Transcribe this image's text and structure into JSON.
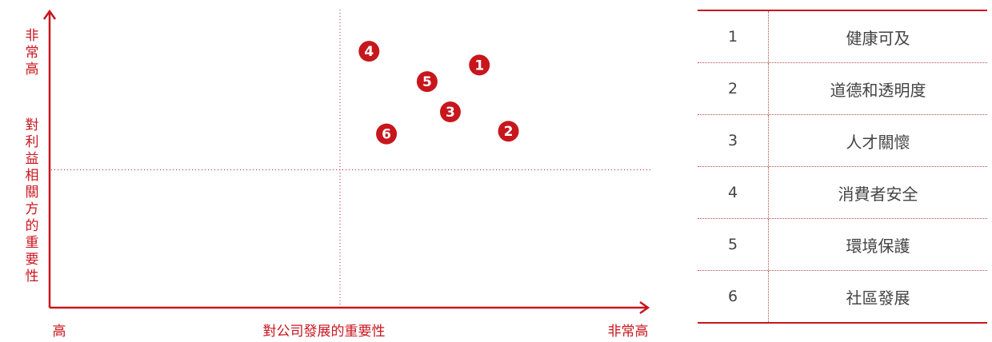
{
  "chart_data": {
    "type": "scatter",
    "xlabel": "對公司發展的重要性",
    "ylabel": "對利益相關方的重要性",
    "x_low_label": "高",
    "x_high_label": "非常高",
    "y_high_label": "非常高",
    "xlim": [
      0,
      10
    ],
    "ylim": [
      0,
      10
    ],
    "quadrant_divider": {
      "x": 5,
      "y": 5
    },
    "color": "#c8161d",
    "points": [
      {
        "label": "1",
        "x": 7.4,
        "y": 8.8
      },
      {
        "label": "2",
        "x": 7.9,
        "y": 6.4
      },
      {
        "label": "3",
        "x": 6.9,
        "y": 7.1
      },
      {
        "label": "4",
        "x": 5.5,
        "y": 9.3
      },
      {
        "label": "5",
        "x": 6.5,
        "y": 8.2
      },
      {
        "label": "6",
        "x": 5.8,
        "y": 6.3
      }
    ]
  },
  "legend": [
    {
      "num": "1",
      "label": "健康可及"
    },
    {
      "num": "2",
      "label": "道德和透明度"
    },
    {
      "num": "3",
      "label": "人才關懷"
    },
    {
      "num": "4",
      "label": "消費者安全"
    },
    {
      "num": "5",
      "label": "環境保護"
    },
    {
      "num": "6",
      "label": "社區發展"
    }
  ]
}
